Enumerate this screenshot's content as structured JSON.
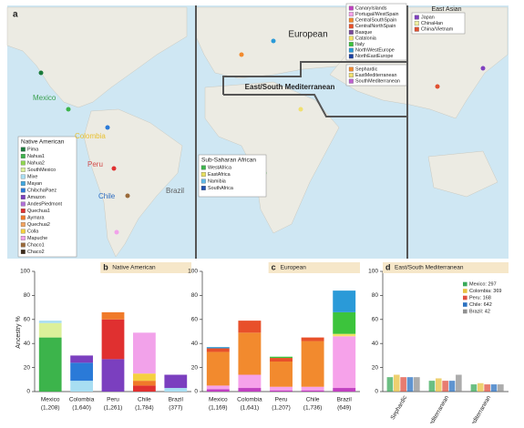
{
  "map": {
    "panel_label": "a",
    "region_labels": [
      "European",
      "East Asian",
      "East/South Mediterranean"
    ],
    "native_legend_title": "Native American",
    "african_legend": {
      "title": "Sub-Saharan African",
      "items": [
        {
          "name": "WestAfrica",
          "color": "#3cb44b"
        },
        {
          "name": "EastAfrica",
          "color": "#e8e060"
        },
        {
          "name": "Namibia",
          "color": "#60b8e8"
        },
        {
          "name": "SouthAfrica",
          "color": "#2050b0"
        }
      ]
    },
    "mediterranean_legend": {
      "items": [
        {
          "name": "Sephardic",
          "color": "#f08a30"
        },
        {
          "name": "EastMediterranean",
          "color": "#f0e070"
        },
        {
          "name": "SouthMediterranean",
          "color": "#c060d0"
        }
      ]
    },
    "east_asian_legend": {
      "items": [
        {
          "name": "Japan",
          "color": "#8040c0"
        },
        {
          "name": "ChinaHan",
          "color": "#f0f0a0"
        },
        {
          "name": "China/Vietnam",
          "color": "#e05030"
        }
      ]
    },
    "country_labels": [
      {
        "text": "Mexico",
        "color": "#3aa050"
      },
      {
        "text": "Colombia",
        "color": "#e8c030"
      },
      {
        "text": "Peru",
        "color": "#d04a4a"
      },
      {
        "text": "Chile",
        "color": "#2a6ac0"
      },
      {
        "text": "Brazil",
        "color": "#606060"
      }
    ]
  },
  "chart_data": [
    {
      "type": "stacked_bar",
      "panel_label": "b",
      "title": "Native American",
      "ylabel": "Ancestry %",
      "categories": [
        "Mexico",
        "Colombia",
        "Peru",
        "Chile",
        "Brazil"
      ],
      "sample_sizes": [
        "(1,208)",
        "(1,640)",
        "(1,261)",
        "(1,784)",
        "(377)"
      ],
      "ylim": [
        0,
        100
      ],
      "yticks": [
        0,
        20,
        40,
        60,
        80,
        100
      ],
      "series": [
        {
          "name": "Pima",
          "color": "#1a7a3a",
          "values": [
            0,
            0,
            0,
            0,
            0
          ]
        },
        {
          "name": "Nahua1",
          "color": "#3cb44b",
          "values": [
            45,
            0,
            0,
            0,
            0
          ]
        },
        {
          "name": "Nahua2",
          "color": "#8fd650",
          "values": [
            0,
            0,
            0,
            0,
            0
          ]
        },
        {
          "name": "SouthMexico",
          "color": "#dcf09a",
          "values": [
            12,
            0,
            0,
            0,
            0
          ]
        },
        {
          "name": "Mixe",
          "color": "#a8def2",
          "values": [
            2,
            9,
            0,
            0,
            3
          ]
        },
        {
          "name": "Mayan",
          "color": "#3fa7e0",
          "values": [
            0,
            0,
            0,
            0,
            0
          ]
        },
        {
          "name": "ChibchaPaez",
          "color": "#2a7ad8",
          "values": [
            0,
            15,
            0,
            0,
            0
          ]
        },
        {
          "name": "Amazon",
          "color": "#7b3fbf",
          "values": [
            0,
            6,
            27,
            0,
            11
          ]
        },
        {
          "name": "AndesPiedmont",
          "color": "#b070d8",
          "values": [
            0,
            0,
            0,
            0,
            0
          ]
        },
        {
          "name": "Quechua1",
          "color": "#e03030",
          "values": [
            0,
            0,
            33,
            5,
            0
          ]
        },
        {
          "name": "Aymara",
          "color": "#f07a2a",
          "values": [
            0,
            0,
            6,
            4,
            0
          ]
        },
        {
          "name": "Quechua2",
          "color": "#f4a460",
          "values": [
            0,
            0,
            0,
            0,
            0
          ]
        },
        {
          "name": "Colla",
          "color": "#f5d040",
          "values": [
            0,
            0,
            0,
            6,
            0
          ]
        },
        {
          "name": "Mapuche",
          "color": "#f2a2ea",
          "values": [
            0,
            0,
            0,
            34,
            0
          ]
        },
        {
          "name": "Chaco1",
          "color": "#9a6a3a",
          "values": [
            0,
            0,
            0,
            0,
            0
          ]
        },
        {
          "name": "Chaco2",
          "color": "#3a2a1a",
          "values": [
            0,
            0,
            0,
            0,
            0
          ]
        }
      ]
    },
    {
      "type": "stacked_bar",
      "panel_label": "c",
      "title": "European",
      "categories": [
        "Mexico",
        "Colombia",
        "Peru",
        "Chile",
        "Brazil"
      ],
      "sample_sizes": [
        "(1,169)",
        "(1,641)",
        "(1,207)",
        "(1,736)",
        "(649)"
      ],
      "ylim": [
        0,
        100
      ],
      "yticks": [
        0,
        20,
        40,
        60,
        80,
        100
      ],
      "series": [
        {
          "name": "CanaryIslands",
          "color": "#c040c0",
          "values": [
            2,
            3,
            1,
            1,
            3
          ]
        },
        {
          "name": "Portugal/WestSpain",
          "color": "#f6a2ea",
          "values": [
            3,
            11,
            3,
            3,
            43
          ]
        },
        {
          "name": "CentralSouthSpain",
          "color": "#f28a2e",
          "values": [
            28,
            35,
            21,
            38,
            0
          ]
        },
        {
          "name": "CentralNorthSpain",
          "color": "#e8502a",
          "values": [
            3,
            10,
            3,
            3,
            0
          ]
        },
        {
          "name": "Basque",
          "color": "#7a4a9a",
          "values": [
            0,
            0,
            0,
            0,
            0
          ]
        },
        {
          "name": "Catalonia",
          "color": "#f2e266",
          "values": [
            0,
            0,
            0,
            0,
            2
          ]
        },
        {
          "name": "Italy",
          "color": "#3cc43c",
          "values": [
            0,
            0,
            1,
            0,
            18
          ]
        },
        {
          "name": "NorthWestEurope",
          "color": "#2a9ad8",
          "values": [
            1,
            0,
            0,
            0,
            18
          ]
        },
        {
          "name": "NorthEastEurope",
          "color": "#1a3fa0",
          "values": [
            0,
            0,
            0,
            0,
            0
          ]
        }
      ]
    },
    {
      "type": "grouped_bar",
      "panel_label": "d",
      "title": "East/South Mediterranean",
      "categories": [
        "Sephardic",
        "East-Mediterranean",
        "South-Mediterranean"
      ],
      "ylim": [
        0,
        100
      ],
      "yticks": [
        0,
        20,
        40,
        60,
        80,
        100
      ],
      "series": [
        {
          "name": "Mexico: 297",
          "color": "#3aaa5a",
          "values": [
            12,
            9,
            6
          ]
        },
        {
          "name": "Colombia: 369",
          "color": "#e8c040",
          "values": [
            14,
            11,
            7
          ]
        },
        {
          "name": "Peru: 168",
          "color": "#e05040",
          "values": [
            12,
            9,
            6
          ]
        },
        {
          "name": "Chile: 642",
          "color": "#2a70c0",
          "values": [
            12,
            9,
            6
          ]
        },
        {
          "name": "Brazil: 42",
          "color": "#909090",
          "values": [
            12,
            14,
            6
          ]
        }
      ]
    }
  ]
}
